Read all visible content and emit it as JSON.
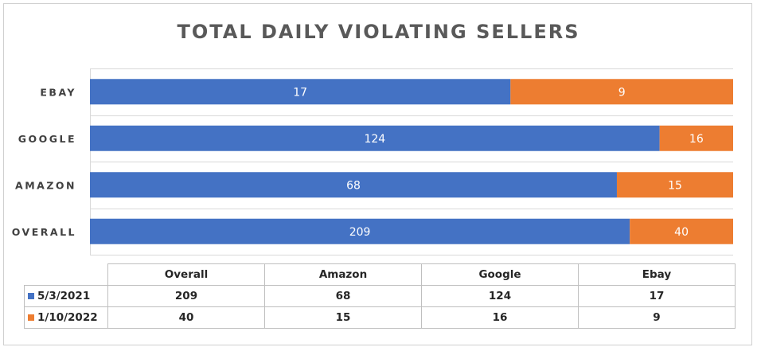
{
  "chart_data": {
    "type": "bar",
    "orientation": "horizontal",
    "stacked": true,
    "title": "TOTAL DAILY VIOLATING SELLERS",
    "categories": [
      "EBAY",
      "GOOGLE",
      "AMAZON",
      "OVERALL"
    ],
    "series": [
      {
        "name": "5/3/2021",
        "color": "#4472c4",
        "values": [
          17,
          124,
          68,
          209
        ]
      },
      {
        "name": "1/10/2022",
        "color": "#ed7d31",
        "values": [
          9,
          16,
          15,
          40
        ]
      }
    ],
    "scale": "100% stacked",
    "grid": true,
    "legend": "data table below chart"
  },
  "data_table": {
    "columns": [
      "Overall",
      "Amazon",
      "Google",
      "Ebay"
    ],
    "rows": [
      {
        "series": "5/3/2021",
        "color": "#4472c4",
        "values": [
          "209",
          "68",
          "124",
          "17"
        ]
      },
      {
        "series": "1/10/2022",
        "color": "#ed7d31",
        "values": [
          "40",
          "15",
          "16",
          "9"
        ]
      }
    ]
  }
}
